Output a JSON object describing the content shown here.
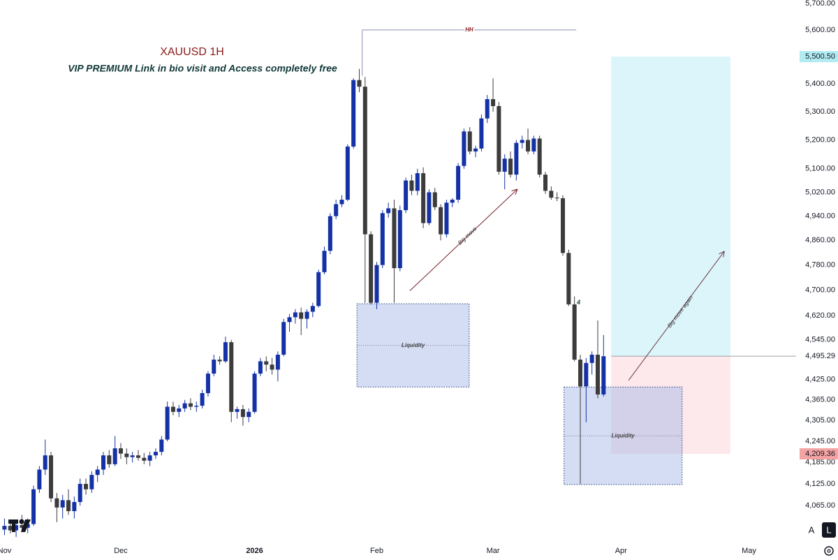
{
  "chart_data": {
    "type": "candlestick",
    "title": "XAUUSD 1H",
    "subtitle": "VIP PREMIUM Link in bio visit and Access completely free",
    "log_scale": true,
    "up_color": "#1432a6",
    "down_color": "#3c3c3c",
    "ylim": [
      3969,
      5714
    ],
    "xlim": [
      -0.77,
      136.1
    ],
    "yticks": [
      {
        "value": 5700,
        "label": "5,700.00"
      },
      {
        "value": 5600,
        "label": "5,600.00"
      },
      {
        "value": 5400,
        "label": "5,400.00"
      },
      {
        "value": 5300,
        "label": "5,300.00"
      },
      {
        "value": 5200,
        "label": "5,200.00"
      },
      {
        "value": 5100,
        "label": "5,100.00"
      },
      {
        "value": 5020,
        "label": "5,020.00"
      },
      {
        "value": 4940,
        "label": "4,940.00"
      },
      {
        "value": 4860,
        "label": "4,860.00"
      },
      {
        "value": 4780,
        "label": "4,780.00"
      },
      {
        "value": 4700,
        "label": "4,700.00"
      },
      {
        "value": 4620,
        "label": "4,620.00"
      },
      {
        "value": 4545,
        "label": "4,545.00"
      },
      {
        "value": 4425,
        "label": "4,425.00"
      },
      {
        "value": 4365,
        "label": "4,365.00"
      },
      {
        "value": 4305,
        "label": "4,305.00"
      },
      {
        "value": 4245,
        "label": "4,245.00"
      },
      {
        "value": 4185,
        "label": "4,185.00"
      },
      {
        "value": 4125,
        "label": "4,125.00"
      },
      {
        "value": 4065,
        "label": "4,065.00"
      }
    ],
    "xticks": [
      {
        "value": 0,
        "label": "Nov"
      },
      {
        "value": 20,
        "label": "Dec"
      },
      {
        "value": 43,
        "label": "2026"
      },
      {
        "value": 64,
        "label": "Feb"
      },
      {
        "value": 84,
        "label": "Mar"
      },
      {
        "value": 106,
        "label": "Apr"
      },
      {
        "value": 128,
        "label": "May"
      }
    ],
    "ohlc": [
      [
        4000,
        4030,
        3985,
        4010
      ],
      [
        4010,
        4025,
        3990,
        3998
      ],
      [
        3998,
        4020,
        3980,
        4012
      ],
      [
        4012,
        4040,
        4000,
        4005
      ],
      [
        4005,
        4030,
        3990,
        4015
      ],
      [
        4015,
        4120,
        4010,
        4110
      ],
      [
        4110,
        4175,
        4100,
        4165
      ],
      [
        4165,
        4250,
        4150,
        4205
      ],
      [
        4205,
        4215,
        4075,
        4085
      ],
      [
        4085,
        4100,
        4020,
        4060
      ],
      [
        4060,
        4095,
        4030,
        4080
      ],
      [
        4080,
        4110,
        4040,
        4050
      ],
      [
        4050,
        4090,
        4030,
        4075
      ],
      [
        4075,
        4140,
        4065,
        4125
      ],
      [
        4125,
        4140,
        4095,
        4110
      ],
      [
        4110,
        4160,
        4100,
        4150
      ],
      [
        4150,
        4175,
        4130,
        4165
      ],
      [
        4165,
        4215,
        4150,
        4205
      ],
      [
        4205,
        4220,
        4170,
        4180
      ],
      [
        4180,
        4260,
        4175,
        4225
      ],
      [
        4225,
        4240,
        4195,
        4210
      ],
      [
        4210,
        4225,
        4180,
        4200
      ],
      [
        4200,
        4215,
        4185,
        4205
      ],
      [
        4205,
        4220,
        4190,
        4198
      ],
      [
        4198,
        4212,
        4180,
        4190
      ],
      [
        4190,
        4215,
        4175,
        4205
      ],
      [
        4205,
        4225,
        4195,
        4215
      ],
      [
        4215,
        4260,
        4205,
        4250
      ],
      [
        4250,
        4360,
        4245,
        4345
      ],
      [
        4345,
        4360,
        4320,
        4330
      ],
      [
        4330,
        4350,
        4315,
        4340
      ],
      [
        4340,
        4365,
        4330,
        4355
      ],
      [
        4355,
        4370,
        4335,
        4345
      ],
      [
        4345,
        4360,
        4330,
        4348
      ],
      [
        4348,
        4395,
        4340,
        4385
      ],
      [
        4385,
        4450,
        4375,
        4443
      ],
      [
        4443,
        4500,
        4435,
        4485
      ],
      [
        4485,
        4495,
        4470,
        4480
      ],
      [
        4480,
        4555,
        4475,
        4538
      ],
      [
        4538,
        4545,
        4300,
        4330
      ],
      [
        4330,
        4345,
        4310,
        4338
      ],
      [
        4338,
        4350,
        4290,
        4315
      ],
      [
        4315,
        4340,
        4300,
        4330
      ],
      [
        4330,
        4450,
        4325,
        4443
      ],
      [
        4443,
        4490,
        4435,
        4480
      ],
      [
        4480,
        4495,
        4450,
        4470
      ],
      [
        4470,
        4490,
        4440,
        4455
      ],
      [
        4455,
        4510,
        4420,
        4500
      ],
      [
        4500,
        4610,
        4495,
        4600
      ],
      [
        4600,
        4625,
        4570,
        4615
      ],
      [
        4615,
        4640,
        4595,
        4630
      ],
      [
        4630,
        4645,
        4560,
        4610
      ],
      [
        4610,
        4640,
        4580,
        4632
      ],
      [
        4632,
        4660,
        4615,
        4650
      ],
      [
        4650,
        4765,
        4645,
        4757
      ],
      [
        4757,
        4840,
        4750,
        4826
      ],
      [
        4826,
        4950,
        4815,
        4940
      ],
      [
        4940,
        4995,
        4930,
        4980
      ],
      [
        4980,
        5010,
        4970,
        4995
      ],
      [
        4995,
        5185,
        4990,
        5177
      ],
      [
        5177,
        5420,
        5170,
        5414
      ],
      [
        5414,
        5455,
        5370,
        5390
      ],
      [
        5390,
        5425,
        4660,
        4880
      ],
      [
        4880,
        4890,
        4655,
        4660
      ],
      [
        4660,
        4790,
        4640,
        4780
      ],
      [
        4780,
        4960,
        4770,
        4950
      ],
      [
        4950,
        4985,
        4935,
        4966
      ],
      [
        4966,
        4995,
        4660,
        4770
      ],
      [
        4770,
        4975,
        4760,
        4960
      ],
      [
        4960,
        5070,
        4950,
        5060
      ],
      [
        5060,
        5080,
        5010,
        5025
      ],
      [
        5025,
        5100,
        5010,
        5085
      ],
      [
        5085,
        5105,
        4900,
        4917
      ],
      [
        4917,
        5030,
        4910,
        5020
      ],
      [
        5020,
        5035,
        4960,
        4970
      ],
      [
        4970,
        4980,
        4860,
        4880
      ],
      [
        4880,
        4995,
        4870,
        4985
      ],
      [
        4985,
        5000,
        4970,
        4995
      ],
      [
        4995,
        5120,
        4985,
        5110
      ],
      [
        5110,
        5240,
        5100,
        5230
      ],
      [
        5230,
        5245,
        5150,
        5160
      ],
      [
        5160,
        5180,
        5140,
        5170
      ],
      [
        5170,
        5290,
        5160,
        5276
      ],
      [
        5276,
        5360,
        5260,
        5345
      ],
      [
        5345,
        5420,
        5300,
        5320
      ],
      [
        5320,
        5335,
        5080,
        5090
      ],
      [
        5090,
        5150,
        5030,
        5135
      ],
      [
        5135,
        5160,
        5070,
        5080
      ],
      [
        5080,
        5200,
        5060,
        5190
      ],
      [
        5190,
        5215,
        5170,
        5200
      ],
      [
        5200,
        5240,
        5150,
        5160
      ],
      [
        5160,
        5215,
        5150,
        5205
      ],
      [
        5205,
        5215,
        5070,
        5080
      ],
      [
        5080,
        5090,
        5015,
        5025
      ],
      [
        5025,
        5040,
        4995,
        5002
      ],
      [
        5002,
        5020,
        4990,
        5000
      ],
      [
        5000,
        5010,
        4810,
        4819
      ],
      [
        4819,
        4830,
        4650,
        4655
      ],
      [
        4655,
        4680,
        4480,
        4485
      ],
      [
        4485,
        4500,
        4125,
        4405
      ],
      [
        4405,
        4490,
        4300,
        4475
      ],
      [
        4475,
        4510,
        4440,
        4500
      ],
      [
        4500,
        4605,
        4370,
        4381
      ],
      [
        4381,
        4560,
        4375,
        4495.29
      ]
    ],
    "zones": [
      {
        "label": "Liquidity",
        "x": [
          60.6,
          79.9
        ],
        "y": [
          4403,
          4657
        ]
      },
      {
        "label": "Liquidity",
        "x": [
          96.2,
          116.5
        ],
        "y": [
          4123,
          4403
        ]
      }
    ],
    "position": {
      "x": [
        104.3,
        124.8
      ],
      "target": {
        "value": 5500.5,
        "label": "5,500.50"
      },
      "entry": {
        "value": 4495.29,
        "label": "4,495.29"
      },
      "stop": {
        "value": 4209.36,
        "label": "4,209.36"
      }
    },
    "level": {
      "label": "HH",
      "x": [
        61.5,
        98.3
      ],
      "value": 5600,
      "anchor": 5430
    },
    "arrows": [
      {
        "label": "Big move",
        "from": [
          69.7,
          4698
        ],
        "to": [
          88.1,
          5029
        ]
      },
      {
        "label": "Big move again",
        "from": [
          107.3,
          4423
        ],
        "to": [
          123.7,
          4823
        ]
      }
    ],
    "notes": [
      {
        "label": "4",
        "x": 98.7,
        "value": 4660
      }
    ],
    "buttons": [
      "A",
      "L"
    ]
  }
}
